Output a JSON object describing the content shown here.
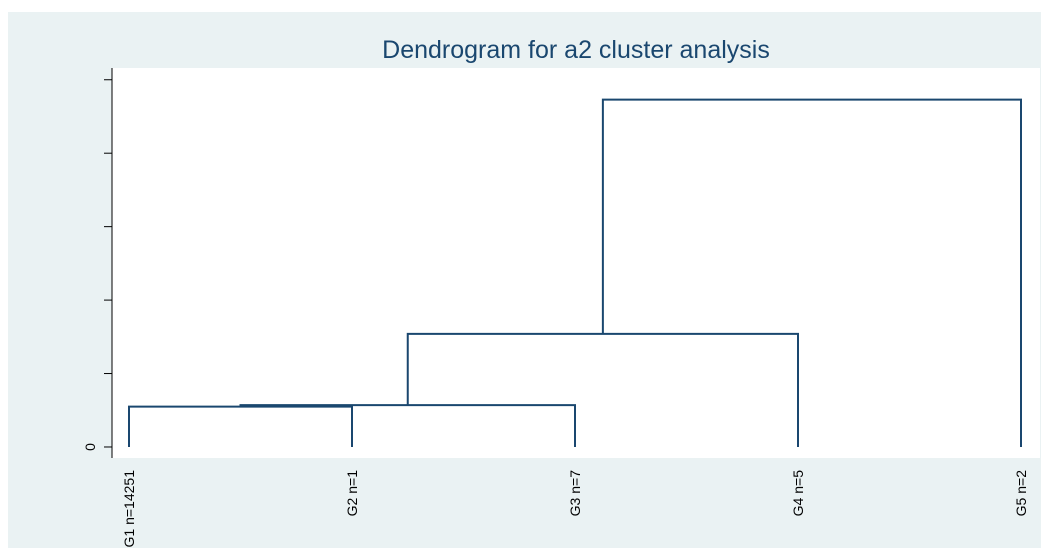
{
  "chart_data": {
    "type": "dendrogram",
    "title": "Dendrogram for a2 cluster analysis",
    "leaves": [
      "G1 n=14251",
      "G2 n=1",
      "G3 n=7",
      "G4 n=5",
      "G5 n=2"
    ],
    "links": [
      {
        "children": [
          0,
          1
        ],
        "height": 0.55
      },
      {
        "children": [
          5,
          2
        ],
        "height": 0.57
      },
      {
        "children": [
          6,
          3
        ],
        "height": 1.54
      },
      {
        "children": [
          7,
          4
        ],
        "height": 4.73
      }
    ],
    "color": "#1a476f",
    "ylim": [
      -0.15,
      5.16
    ],
    "yticks": [
      0,
      {
        "value": 1,
        "label": null
      },
      {
        "value": 2,
        "label": null
      },
      {
        "value": 3,
        "label": null
      },
      {
        "value": 4,
        "label": null
      },
      {
        "value": 5,
        "label": null
      }
    ]
  }
}
